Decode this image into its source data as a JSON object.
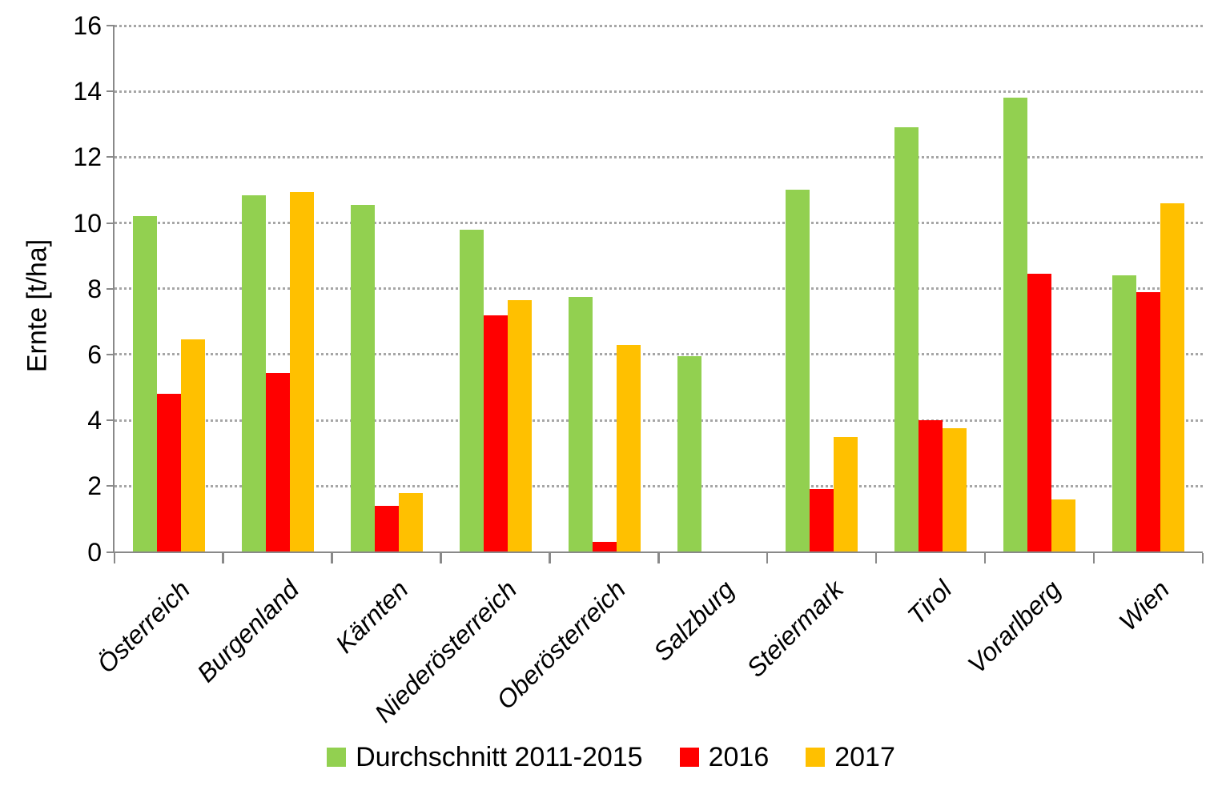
{
  "chart_data": {
    "type": "bar",
    "title": "",
    "xlabel": "",
    "ylabel": "Ernte [t/ha]",
    "ylim": [
      0,
      16
    ],
    "yticks": [
      0,
      2,
      4,
      6,
      8,
      10,
      12,
      14,
      16
    ],
    "grid": "horizontal-dotted",
    "legend_position": "bottom",
    "categories": [
      "Österreich",
      "Burgenland",
      "Kärnten",
      "Niederösterreich",
      "Oberösterreich",
      "Salzburg",
      "Steiermark",
      "Tirol",
      "Vorarlberg",
      "Wien"
    ],
    "series": [
      {
        "name": "Durchschnitt 2011-2015",
        "color": "#92D050",
        "values": [
          10.2,
          10.85,
          10.55,
          9.8,
          7.75,
          5.95,
          11.0,
          12.9,
          13.8,
          8.4
        ]
      },
      {
        "name": "2016",
        "color": "#FF0000",
        "values": [
          4.8,
          5.45,
          1.4,
          7.2,
          0.3,
          0,
          1.9,
          4.0,
          8.45,
          7.9
        ]
      },
      {
        "name": "2017",
        "color": "#FFC000",
        "values": [
          6.45,
          10.95,
          1.8,
          7.65,
          6.3,
          0,
          3.5,
          3.75,
          1.6,
          10.6
        ]
      }
    ]
  },
  "colors": {
    "background": "#FFFFFF",
    "grid": "#A6A6A6",
    "axis": "#898989",
    "text": "#000000"
  }
}
